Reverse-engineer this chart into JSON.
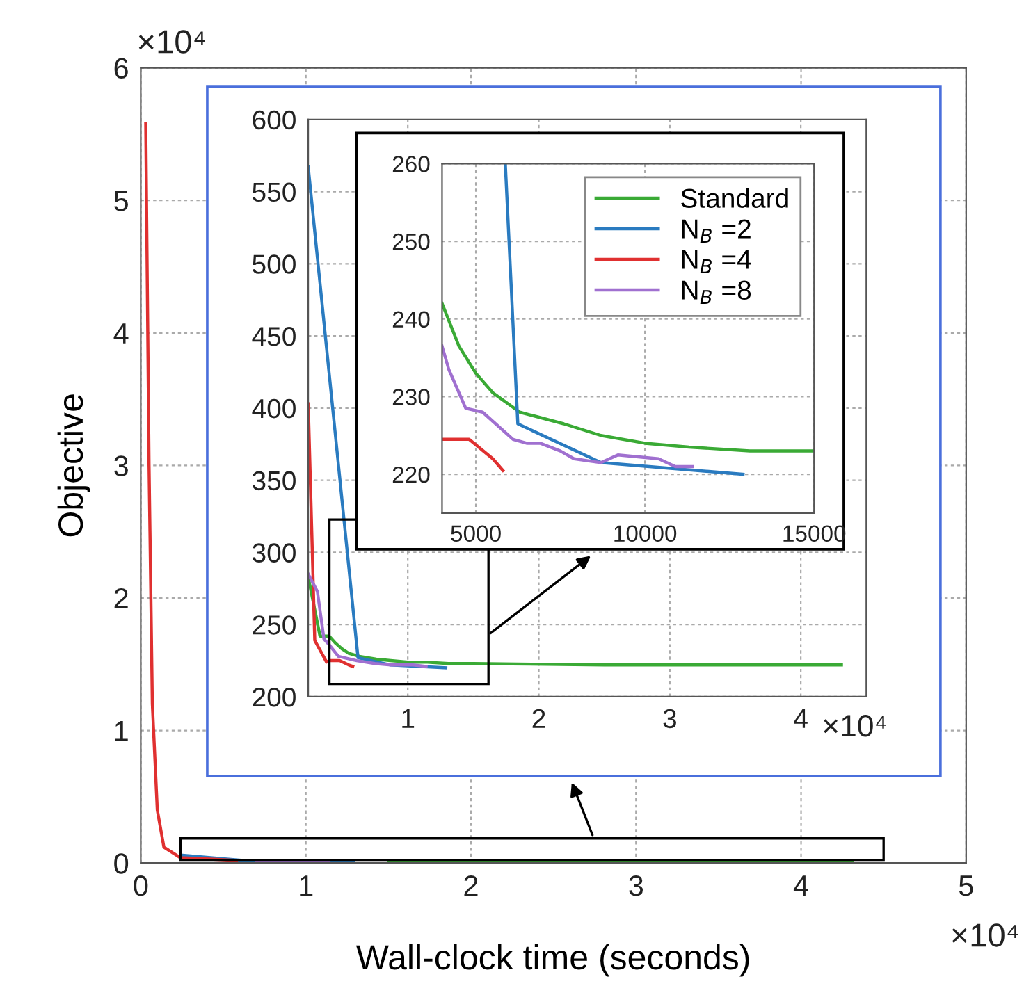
{
  "chart_data": [
    {
      "type": "line",
      "xlabel": "Wall-clock time (seconds)",
      "ylabel": "Objective",
      "xlim": [
        0,
        5
      ],
      "ylim": [
        0,
        6
      ],
      "xticks": [
        0,
        1,
        2,
        3,
        4,
        5
      ],
      "yticks": [
        0,
        1,
        2,
        3,
        4,
        5,
        6
      ],
      "grid": true,
      "annotations": [
        "×10⁴",
        "×10⁴"
      ],
      "series": [
        {
          "color": "#3aaa35",
          "x": [
            1.5,
            4.31
          ],
          "values": [
            0.02,
            0.02
          ]
        },
        {
          "color": "#2a7bc0",
          "x": [
            0.24,
            0.62,
            1.29
          ],
          "values": [
            0.06,
            0.02,
            0.02
          ]
        },
        {
          "color": "#e03030",
          "x": [
            0.03,
            0.05,
            0.07,
            0.1,
            0.14,
            0.24,
            0.58
          ],
          "values": [
            5.58,
            3.0,
            1.2,
            0.4,
            0.12,
            0.04,
            0.02
          ]
        },
        {
          "color": "#a070d0",
          "x": [
            0.7,
            1.14
          ],
          "values": [
            0.02,
            0.02
          ]
        }
      ]
    },
    {
      "type": "line",
      "xlim": [
        0.24,
        4.5
      ],
      "ylim": [
        200,
        600
      ],
      "xticks": [
        1,
        2,
        3,
        4
      ],
      "yticks": [
        200,
        250,
        300,
        350,
        400,
        450,
        500,
        550,
        600
      ],
      "grid": true,
      "annotations": [
        "×10⁴"
      ],
      "series": [
        {
          "color": "#3aaa35",
          "x": [
            0.24,
            0.33,
            0.4,
            0.45,
            0.5,
            0.55,
            0.63,
            0.76,
            0.87,
            1.0,
            1.13,
            1.31,
            1.5,
            2.5,
            4.31
          ],
          "values": [
            283,
            242,
            242,
            237,
            233,
            230,
            228,
            226,
            225,
            224,
            224,
            223,
            223,
            222,
            222
          ]
        },
        {
          "color": "#2a7bc0",
          "x": [
            0.24,
            0.62,
            0.87,
            1.29
          ],
          "values": [
            567,
            227,
            222,
            220
          ]
        },
        {
          "color": "#e03030",
          "x": [
            0.24,
            0.29,
            0.38,
            0.4,
            0.48,
            0.55,
            0.58
          ],
          "values": [
            403,
            239,
            224,
            225,
            225,
            222,
            221
          ]
        },
        {
          "color": "#a070d0",
          "x": [
            0.24,
            0.31,
            0.36,
            0.4,
            0.47,
            0.61,
            0.75,
            0.87,
            1.04,
            1.14
          ],
          "values": [
            285,
            273,
            240,
            236,
            228,
            225,
            223,
            222,
            222,
            221
          ]
        }
      ]
    },
    {
      "type": "line",
      "xlim": [
        4000,
        15000
      ],
      "ylim": [
        215,
        260
      ],
      "xticks": [
        5000,
        10000,
        15000
      ],
      "yticks": [
        220,
        230,
        240,
        250,
        260
      ],
      "grid": true,
      "legend": "top right",
      "series": [
        {
          "name": "Standard",
          "color": "#3aaa35",
          "x": [
            4000,
            4500,
            5000,
            5500,
            6300,
            7600,
            8700,
            10000,
            11300,
            13100,
            15000
          ],
          "values": [
            242,
            236.5,
            233,
            230.5,
            228,
            226.5,
            225,
            224,
            223.5,
            223,
            223
          ]
        },
        {
          "name": "N$_{B}$ =2",
          "color": "#2a7bc0",
          "x": [
            5870,
            6240,
            8700,
            12900
          ],
          "values": [
            260,
            226.5,
            221.5,
            220
          ]
        },
        {
          "name": "N$_{B}$ =4",
          "color": "#e03030",
          "x": [
            4000,
            4800,
            5500,
            5800
          ],
          "values": [
            224.5,
            224.5,
            222,
            220.5
          ]
        },
        {
          "name": "N$_{B}$ =8",
          "color": "#a070d0",
          "x": [
            4000,
            4200,
            4700,
            5200,
            6100,
            6500,
            6900,
            7500,
            7900,
            8700,
            9200,
            10400,
            10900,
            11400
          ],
          "values": [
            236.5,
            233.5,
            228.5,
            228,
            224.5,
            224,
            224,
            223,
            222,
            221.5,
            222.5,
            222,
            221,
            221
          ]
        }
      ]
    }
  ]
}
